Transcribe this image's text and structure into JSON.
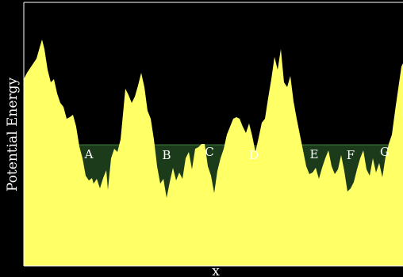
{
  "diagram": {
    "xlabel": "x",
    "ylabel": "Potential Energy",
    "colors": {
      "background": "#000000",
      "frame": "#ffffff",
      "terrain": "#ffff66",
      "water": "#1b3b1b",
      "waterline": "#3f7f3f",
      "label": "#ffffff"
    },
    "wells": [
      "A",
      "B",
      "C",
      "D",
      "E",
      "F",
      "G"
    ]
  }
}
